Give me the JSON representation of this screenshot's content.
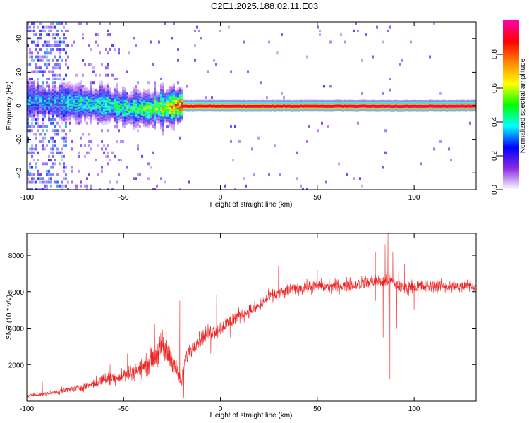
{
  "title": "C2E1.2025.188.02.11.E03",
  "chart_data": [
    {
      "type": "heatmap",
      "xlabel": "Height of straight line (km)",
      "ylabel": "Frequency (Hz)",
      "xlim": [
        -100,
        132
      ],
      "ylim": [
        -50,
        50
      ],
      "x_ticks": [
        "-100",
        "-50",
        "0",
        "50",
        "100"
      ],
      "y_ticks": [
        "-40",
        "-20",
        "0",
        "20",
        "40"
      ],
      "colorbar": {
        "label": "Normalized spectral amplitude",
        "range": [
          0.0,
          1.0
        ],
        "ticks": [
          "0.0",
          "0.2",
          "0.4",
          "0.6",
          "0.8"
        ],
        "colors": [
          "#ffffff",
          "#8a2be2",
          "#0000ff",
          "#00ffff",
          "#00ff00",
          "#ffff00",
          "#ff8800",
          "#ff0000",
          "#ff00aa"
        ]
      },
      "ridge": {
        "frequency_hz": [
          [
            -95,
            3
          ],
          [
            -80,
            2
          ],
          [
            -60,
            1
          ],
          [
            -45,
            -2
          ],
          [
            -35,
            -1
          ],
          [
            -25,
            0
          ],
          [
            0,
            0
          ],
          [
            132,
            0
          ]
        ],
        "peak_amplitude": [
          [
            -100,
            0.35
          ],
          [
            -80,
            0.4
          ],
          [
            -60,
            0.45
          ],
          [
            -40,
            0.5
          ],
          [
            -25,
            0.7
          ],
          [
            -20,
            0.95
          ],
          [
            132,
            1.0
          ]
        ],
        "noise_region_km": [
          -100,
          -80
        ]
      },
      "grid": false
    },
    {
      "type": "line",
      "xlabel": "Height of straight line (km)",
      "ylabel": "SNR (10 * v/v)",
      "xlim": [
        -100,
        132
      ],
      "ylim": [
        0,
        9200
      ],
      "x_ticks": [
        "-100",
        "-50",
        "0",
        "50",
        "100"
      ],
      "y_ticks": [
        "2000",
        "4000",
        "6000",
        "8000"
      ],
      "series": [
        {
          "color": "#ee2222",
          "envelope_x": [
            -100,
            -90,
            -80,
            -70,
            -60,
            -50,
            -40,
            -35,
            -30,
            -25,
            -20,
            -18,
            -15,
            -10,
            -5,
            0,
            10,
            20,
            25,
            30,
            40,
            50,
            60,
            70,
            75,
            80,
            85,
            88,
            90,
            95,
            100,
            110,
            120,
            132
          ],
          "envelope_y": [
            300,
            400,
            600,
            800,
            1200,
            1400,
            1800,
            2300,
            3000,
            2300,
            1000,
            2400,
            2900,
            3500,
            3800,
            4000,
            4700,
            5200,
            5700,
            5900,
            6200,
            6300,
            6300,
            6400,
            6500,
            6600,
            6500,
            6700,
            6400,
            6200,
            6300,
            6300,
            6300,
            6300
          ]
        }
      ],
      "spikes": [
        [
          -92,
          1100
        ],
        [
          -70,
          1300
        ],
        [
          -57,
          2000
        ],
        [
          -48,
          2600
        ],
        [
          -34,
          4200
        ],
        [
          -28,
          4900
        ],
        [
          -24,
          3900
        ],
        [
          -21,
          5500
        ],
        [
          -8,
          6300
        ],
        [
          -2,
          5800
        ],
        [
          8,
          6500
        ],
        [
          30,
          7400
        ],
        [
          50,
          7200
        ],
        [
          80,
          8200
        ],
        [
          85,
          8600
        ],
        [
          86.5,
          9200
        ],
        [
          87.5,
          1200
        ],
        [
          89,
          8200
        ],
        [
          92,
          7200
        ],
        [
          95,
          7500
        ],
        [
          100,
          5000
        ]
      ],
      "dips": [
        [
          -19,
          200
        ],
        [
          -12,
          1500
        ],
        [
          -5,
          2600
        ],
        [
          5,
          3500
        ],
        [
          80,
          5500
        ],
        [
          84,
          3500
        ],
        [
          87,
          3000
        ],
        [
          91,
          4000
        ],
        [
          102,
          4000
        ]
      ],
      "grid": false
    }
  ]
}
